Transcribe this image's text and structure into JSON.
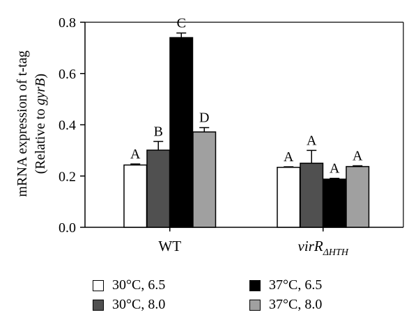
{
  "chart_data": {
    "type": "bar",
    "ylabel": "mRNA expression of t-tag",
    "ylabel2": "(Relative to ",
    "ylabel2_italic": "gyrB",
    "ylabel2_end": ")",
    "ylim": [
      0,
      0.8
    ],
    "yticks": [
      "0.0",
      "0.2",
      "0.4",
      "0.6",
      "0.8"
    ],
    "grid": false,
    "legend_position": "bottom",
    "groups": [
      {
        "label": "WT",
        "label_sub": ""
      },
      {
        "label": "virR",
        "label_sub": "ΔHTH"
      }
    ],
    "series": [
      {
        "name": "30°C, 6.5",
        "color": "#ffffff",
        "values": [
          0.243,
          0.234
        ],
        "errors": [
          0.004,
          0.002
        ],
        "letters": [
          "A",
          "A"
        ]
      },
      {
        "name": "30°C, 8.0",
        "color": "#505050",
        "values": [
          0.301,
          0.25
        ],
        "errors": [
          0.034,
          0.05
        ],
        "letters": [
          "B",
          "A"
        ]
      },
      {
        "name": "37°C, 6.5",
        "color": "#000000",
        "values": [
          0.74,
          0.188
        ],
        "errors": [
          0.018,
          0.003
        ],
        "letters": [
          "C",
          "A"
        ]
      },
      {
        "name": "37°C, 8.0",
        "color": "#a0a0a0",
        "values": [
          0.372,
          0.237
        ],
        "errors": [
          0.017,
          0.003
        ],
        "letters": [
          "D",
          "A"
        ]
      }
    ]
  }
}
